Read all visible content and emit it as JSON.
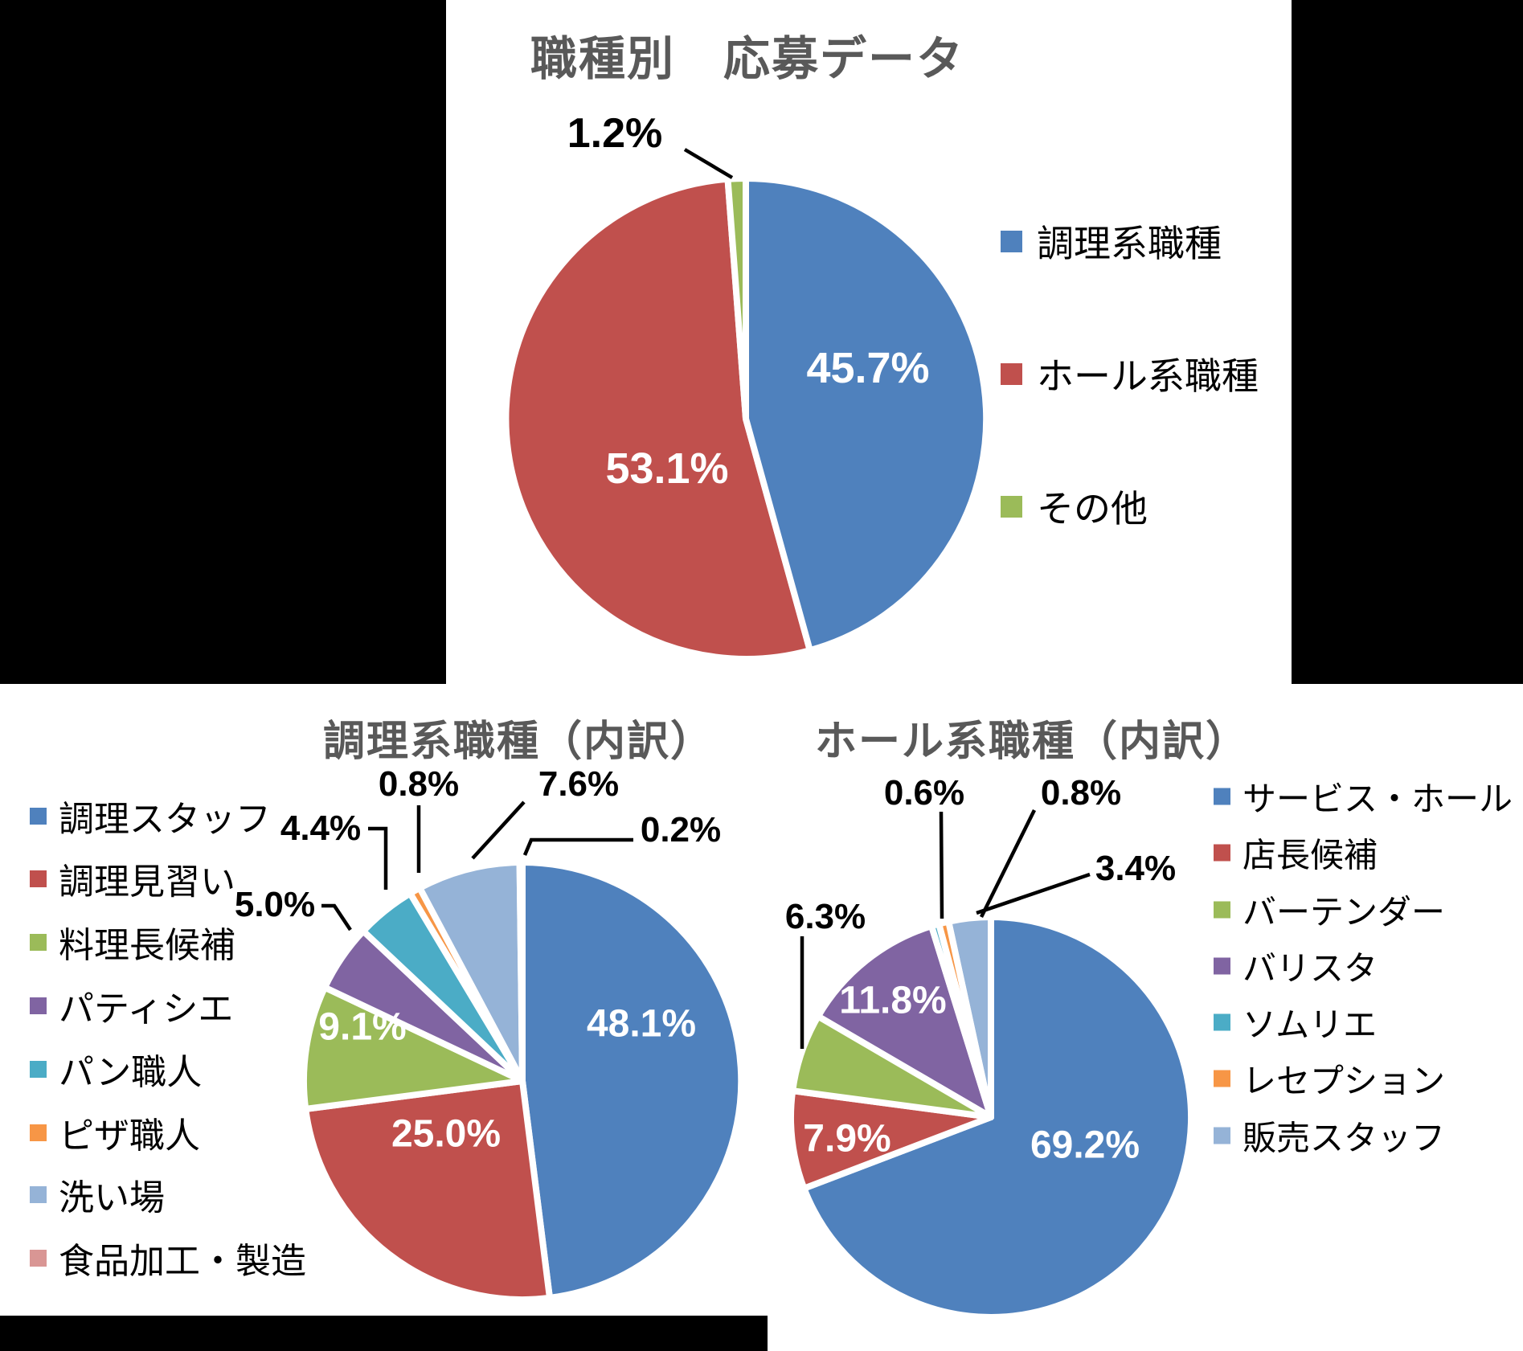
{
  "background_color": "#ffffff",
  "mask_color": "#000000",
  "title_color": "#595959",
  "chart_data": [
    {
      "type": "pie",
      "title": "職種別　応募データ",
      "labels": [
        "調理系職種",
        "ホール系職種",
        "その他"
      ],
      "values": [
        45.7,
        53.1,
        1.2
      ],
      "display_labels": [
        "45.7%",
        "53.1%",
        "1.2%"
      ],
      "colors": [
        "#4F81BD",
        "#C0504D",
        "#9BBB59"
      ],
      "legend_position": "right",
      "start_angle": "top",
      "direction": "clockwise"
    },
    {
      "type": "pie",
      "title": "調理系職種（内訳）",
      "labels": [
        "調理スタッフ",
        "調理見習い",
        "料理長候補",
        "パティシエ",
        "パン職人",
        "ピザ職人",
        "洗い場",
        "食品加工・製造"
      ],
      "values": [
        48.1,
        25.0,
        9.1,
        5.0,
        4.4,
        0.8,
        7.6,
        0.2
      ],
      "display_labels": [
        "48.1%",
        "25.0%",
        "9.1%",
        "5.0%",
        "4.4%",
        "0.8%",
        "7.6%",
        "0.2%"
      ],
      "colors": [
        "#4F81BD",
        "#C0504D",
        "#9BBB59",
        "#8064A2",
        "#4BACC6",
        "#F79646",
        "#95B3D7",
        "#D99694"
      ],
      "legend_position": "left",
      "start_angle": "top",
      "direction": "clockwise"
    },
    {
      "type": "pie",
      "title": "ホール系職種（内訳）",
      "labels": [
        "サービス・ホール",
        "店長候補",
        "バーテンダー",
        "バリスタ",
        "ソムリエ",
        "レセプション",
        "販売スタッフ"
      ],
      "values": [
        69.2,
        7.9,
        6.3,
        11.8,
        0.6,
        0.8,
        3.4
      ],
      "display_labels": [
        "69.2%",
        "7.9%",
        "6.3%",
        "11.8%",
        "0.6%",
        "0.8%",
        "3.4%"
      ],
      "colors": [
        "#4F81BD",
        "#C0504D",
        "#9BBB59",
        "#8064A2",
        "#4BACC6",
        "#F79646",
        "#95B3D7"
      ],
      "legend_position": "right",
      "start_angle": "top",
      "direction": "clockwise"
    }
  ]
}
